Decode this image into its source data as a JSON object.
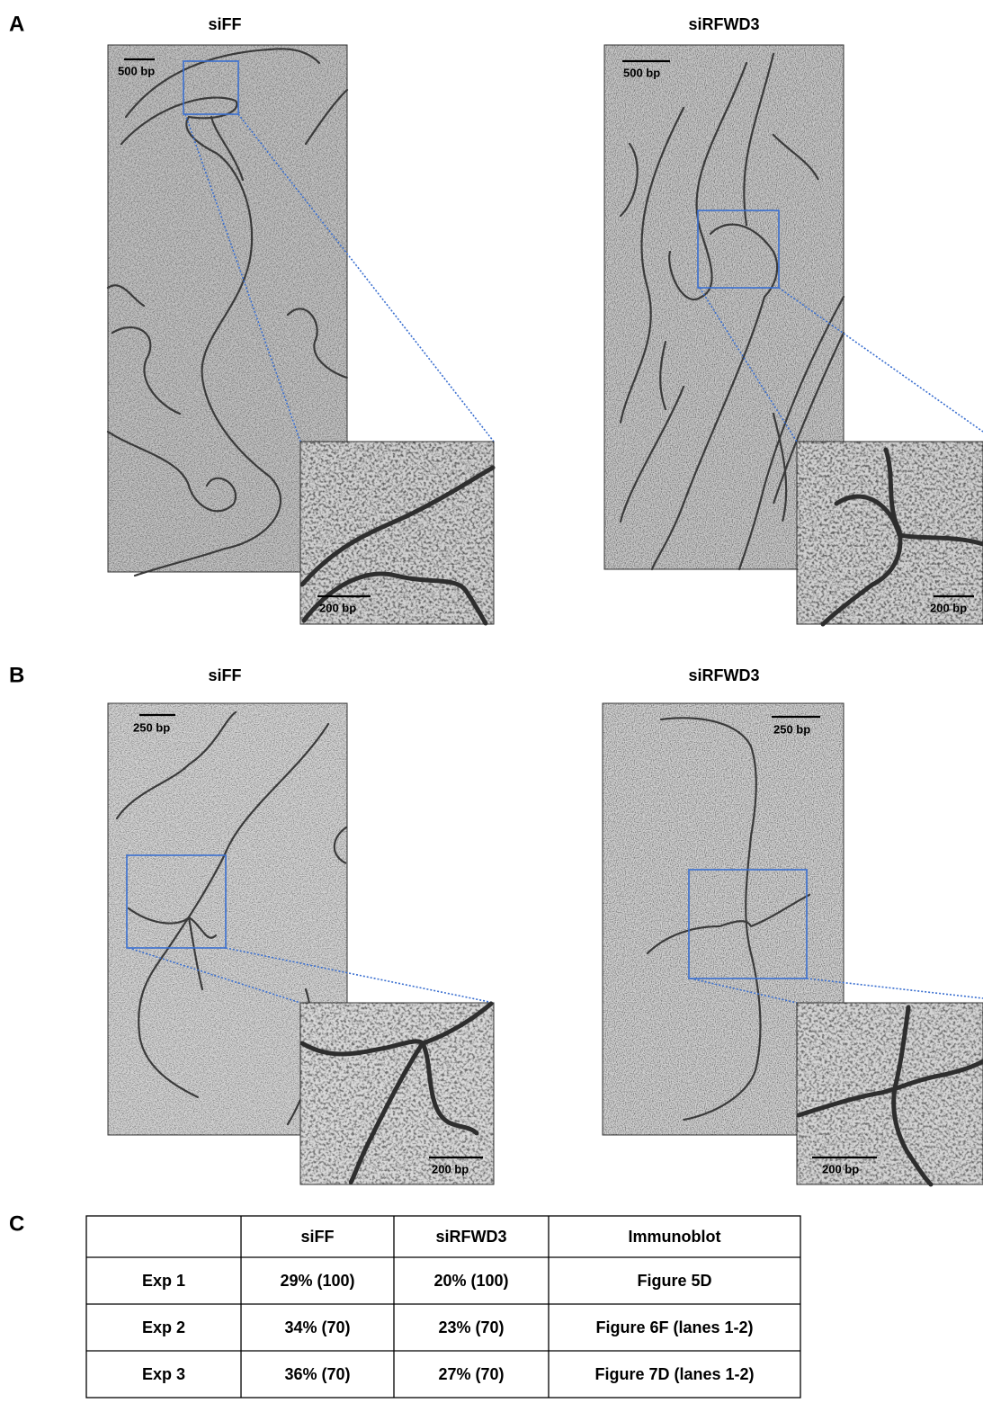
{
  "panels": [
    {
      "label": "A",
      "images": [
        {
          "title": "siFF",
          "scale_bar": "500 bp",
          "inset_scale_bar": "200 bp"
        },
        {
          "title": "siRFWD3",
          "scale_bar": "500 bp",
          "inset_scale_bar": "200 bp"
        }
      ]
    },
    {
      "label": "B",
      "images": [
        {
          "title": "siFF",
          "scale_bar": "250 bp",
          "inset_scale_bar": "200 bp"
        },
        {
          "title": "siRFWD3",
          "scale_bar": "250 bp",
          "inset_scale_bar": "200 bp"
        }
      ]
    }
  ],
  "table": {
    "label": "C",
    "columns": [
      "siFF",
      "siRFWD3",
      "Immunoblot"
    ],
    "rows": [
      [
        "Exp 1",
        "29% (100)",
        "20% (100)",
        "Figure 5D"
      ],
      [
        "Exp 2",
        "34% (70)",
        "23% (70)",
        "Figure 6F (lanes 1-2)"
      ],
      [
        "Exp 3",
        "36% (70)",
        "27% (70)",
        "Figure 7D (lanes 1-2)"
      ]
    ]
  }
}
